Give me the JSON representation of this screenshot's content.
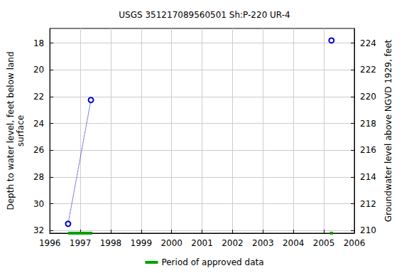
{
  "chart_data": {
    "type": "line",
    "title": "USGS 351217089560501 Sh:P-220 UR-4",
    "y_label": "Depth to water level, feet below land\nsurface",
    "y2_label": "Groundwater level above NGVD 1929, feet",
    "xlim": [
      1996,
      2006
    ],
    "xticks": [
      1996,
      1997,
      1998,
      1999,
      2000,
      2001,
      2002,
      2003,
      2004,
      2005,
      2006
    ],
    "ylim": [
      16.9,
      32.2
    ],
    "yticks": [
      18,
      20,
      22,
      24,
      26,
      28,
      30,
      32
    ],
    "y2lim": [
      209.8,
      225.1
    ],
    "y2ticks": [
      210,
      212,
      214,
      216,
      218,
      220,
      222,
      224
    ],
    "grid": true,
    "legend": "bottom",
    "series": [
      {
        "x": [
          1996.6,
          1997.35
        ],
        "values": [
          31.5,
          22.25
        ],
        "color": "#0000cc",
        "marker": "circle",
        "line_style": "dotted"
      },
      {
        "x": [
          2005.25
        ],
        "values": [
          17.8
        ],
        "color": "#0000cc",
        "marker": "circle",
        "line_style": "none"
      }
    ],
    "approved_periods": {
      "name": "Period of approved data",
      "color": "#00a000",
      "ranges": [
        [
          1996.6,
          1997.4
        ],
        [
          2005.2,
          2005.3
        ]
      ]
    }
  }
}
